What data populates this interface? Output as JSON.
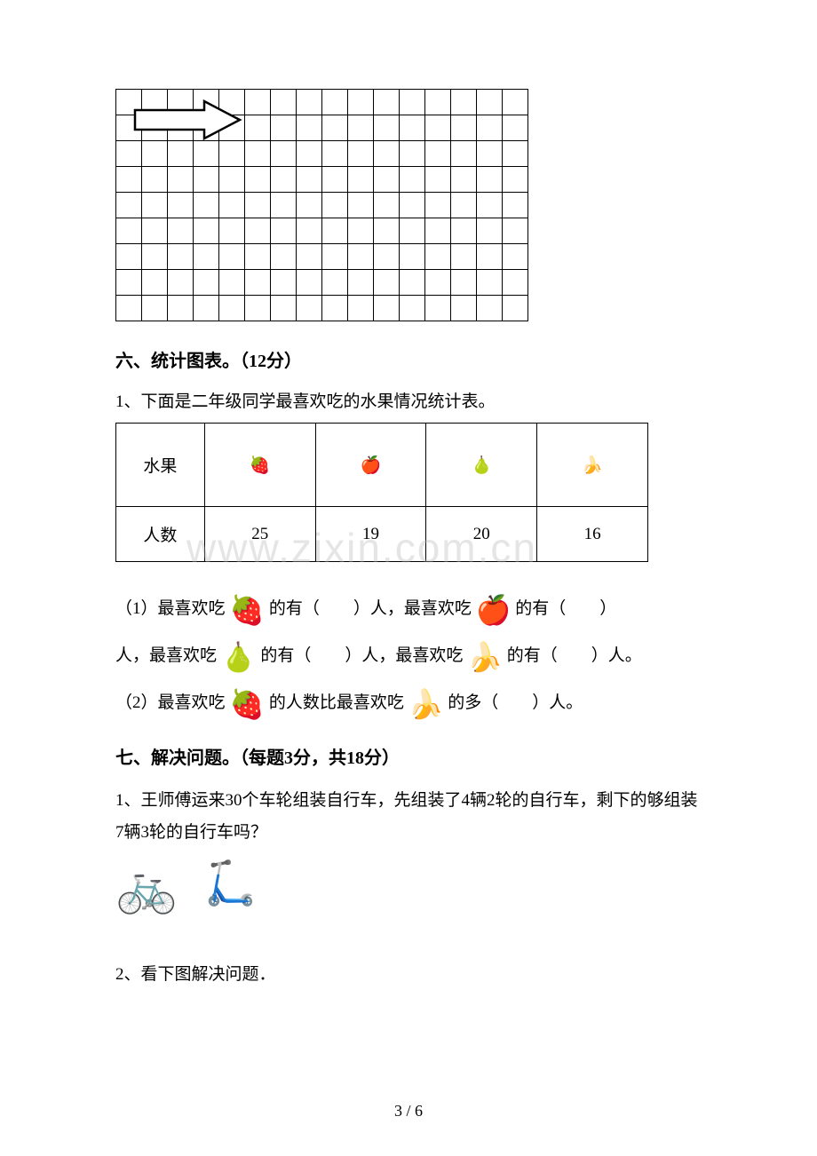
{
  "grid": {
    "rows": 9,
    "cols": 16
  },
  "section6": {
    "heading": "六、统计图表。（12分）",
    "intro": "1、下面是二年级同学最喜欢吃的水果情况统计表。",
    "table": {
      "header_label": "水果",
      "row_label": "人数",
      "fruits": [
        "🍓",
        "🍎",
        "🍐",
        "🍌"
      ],
      "counts": [
        25,
        19,
        20,
        16
      ]
    },
    "q1_prefix": "（1）最喜欢吃 ",
    "q1_mid1": " 的有（　　）人，最喜欢吃 ",
    "q1_mid2": " 的有（　　）",
    "q1_line2_prefix": "人，最喜欢吃 ",
    "q1_line2_mid": " 的有（　　）人，最喜欢吃 ",
    "q1_line2_suffix": " 的有（　　）人。",
    "q2_prefix": "（2）最喜欢吃 ",
    "q2_mid": " 的人数比最喜欢吃 ",
    "q2_suffix": " 的多（　　）人。"
  },
  "section7": {
    "heading": "七、解决问题。（每题3分，共18分）",
    "q1": "1、王师傅运来30个车轮组装自行车，先组装了4辆2轮的自行车，剩下的够组装7辆3轮的自行车吗？",
    "q2": "2、看下图解决问题．"
  },
  "watermark": "www.zixin.com.cn",
  "page": "3 / 6"
}
